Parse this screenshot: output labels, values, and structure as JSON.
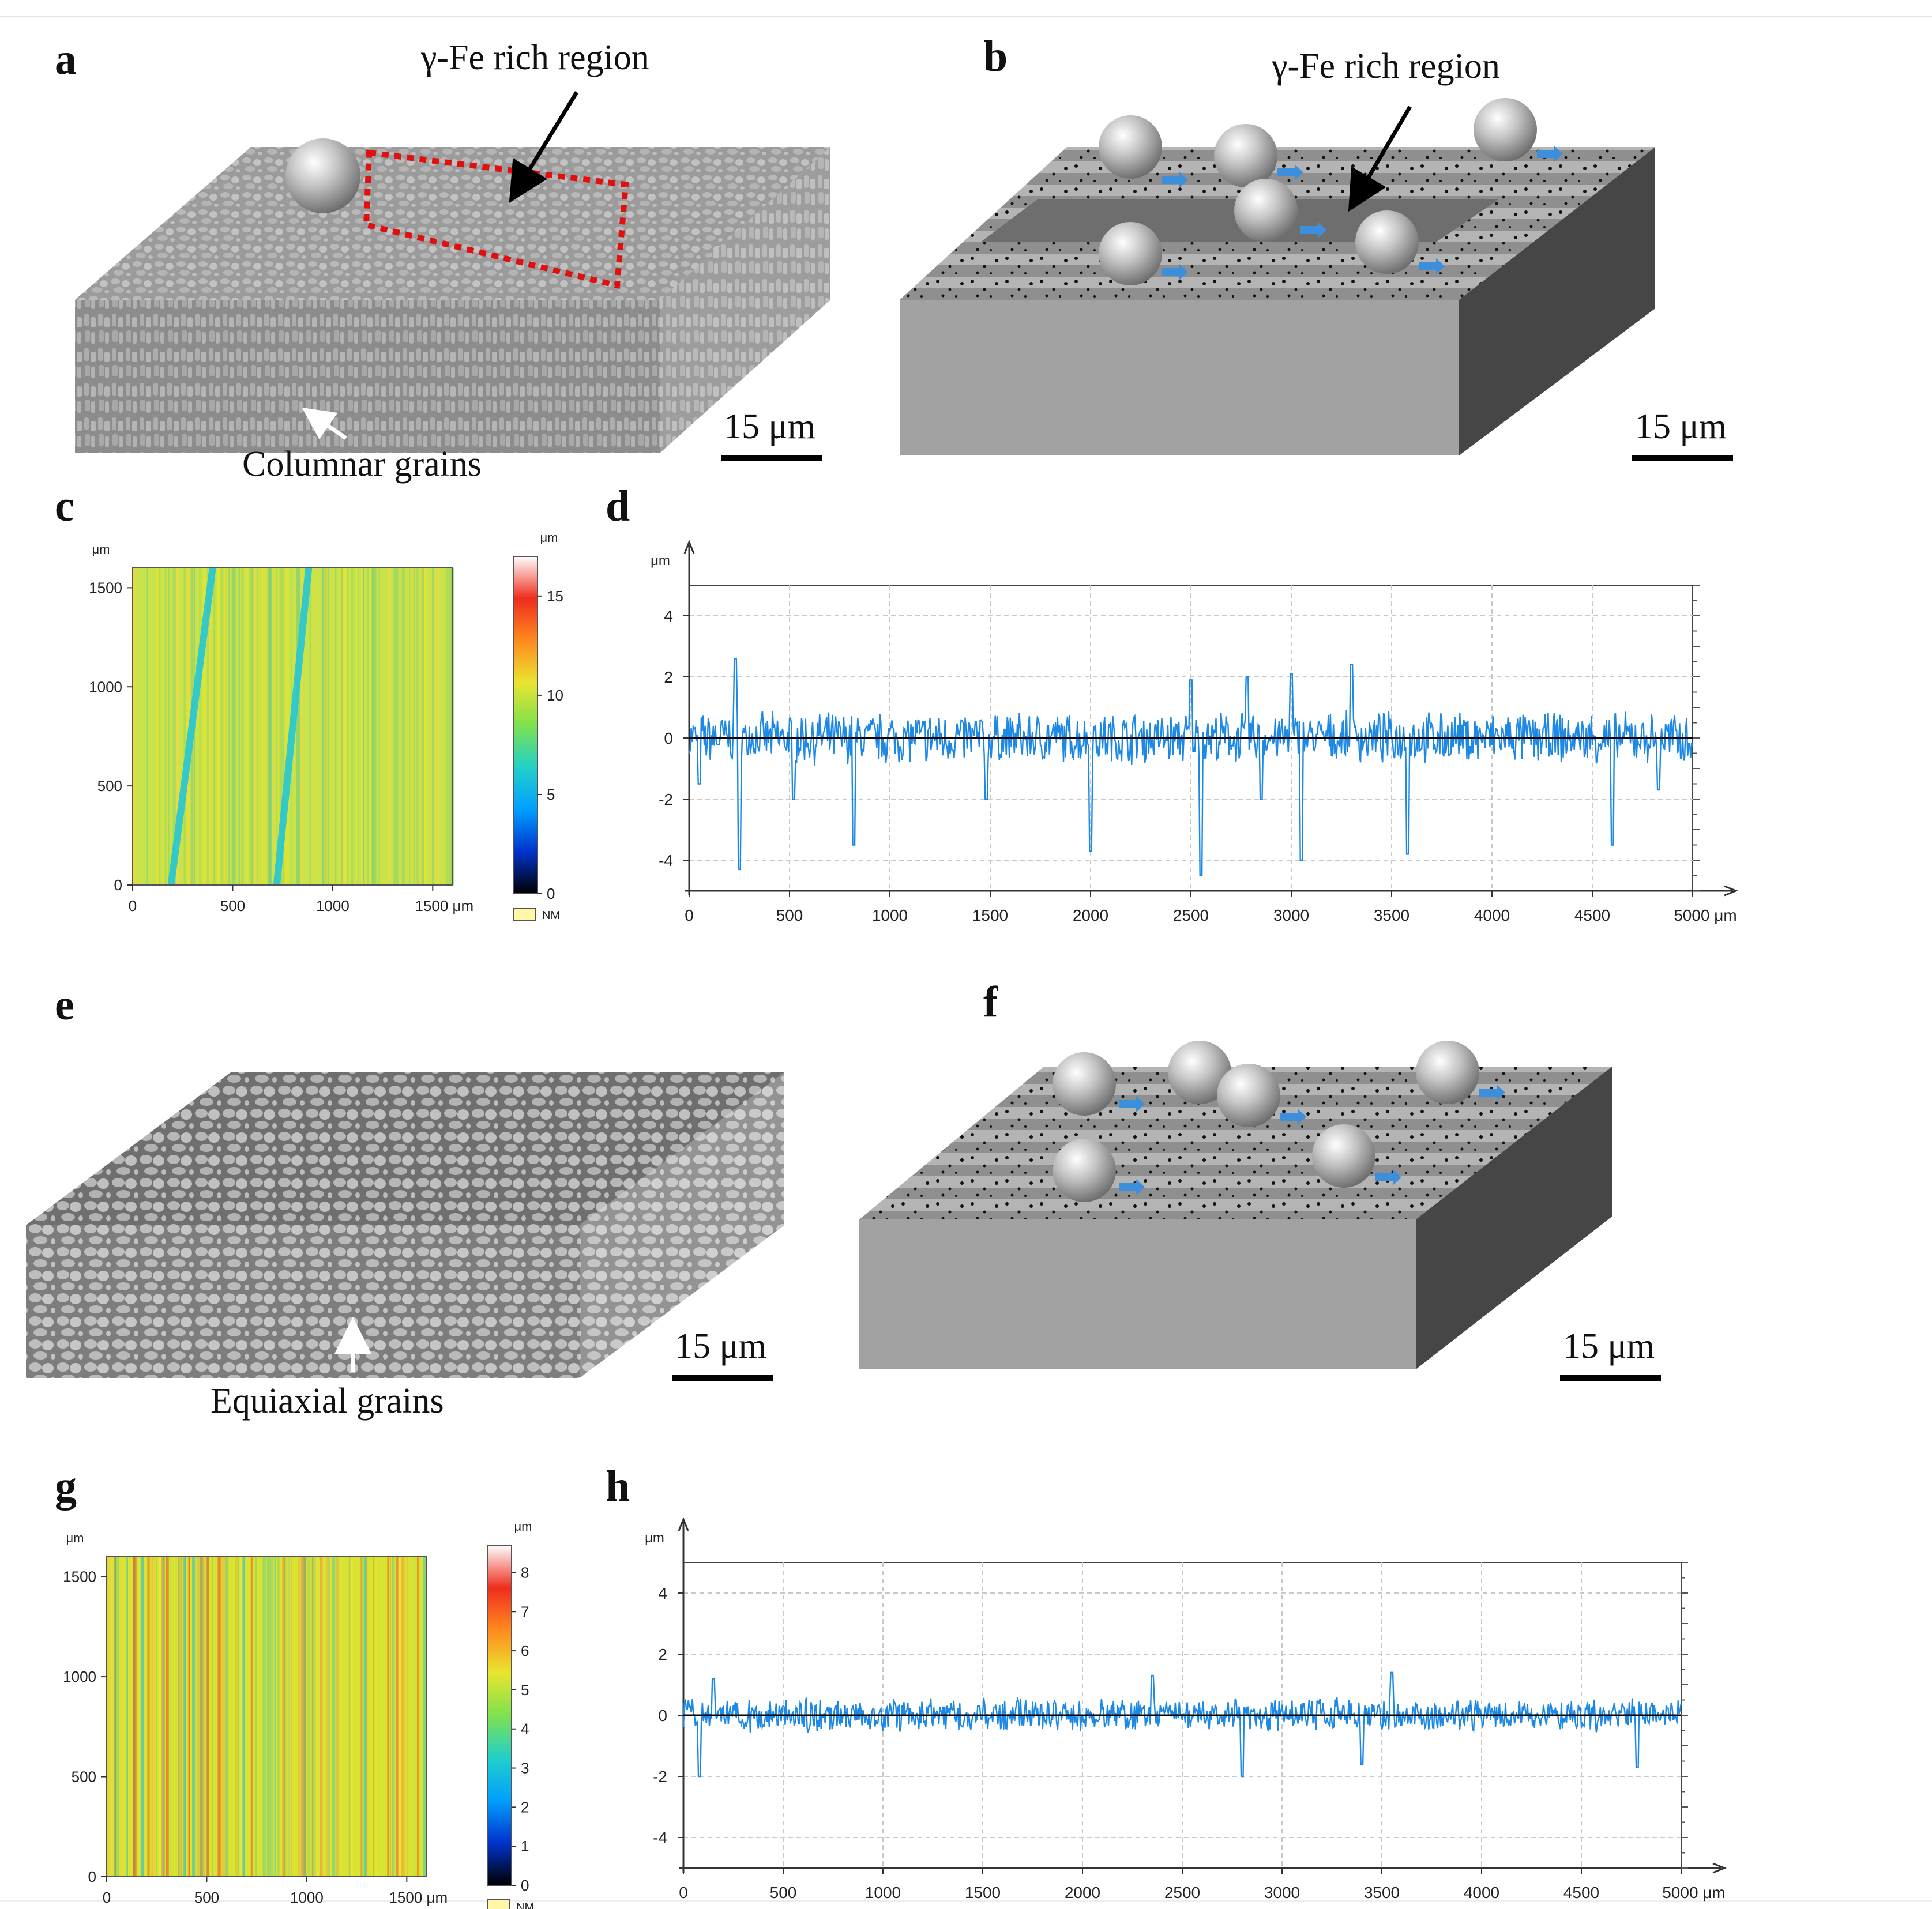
{
  "panels": {
    "a": {
      "letter": "a",
      "region_label": "γ-Fe rich region",
      "grains_label": "Columnar grains",
      "scale": "15 μm"
    },
    "b": {
      "letter": "b",
      "region_label": "γ-Fe rich region",
      "scale": "15 μm"
    },
    "c": {
      "letter": "c",
      "y_unit": "μm",
      "x_unit": "μm",
      "colorbar_unit": "μm",
      "nm_label": "NM"
    },
    "d": {
      "letter": "d",
      "y_unit": "μm",
      "x_unit": "μm"
    },
    "e": {
      "letter": "e",
      "grains_label": "Equiaxial grains",
      "scale": "15 μm"
    },
    "f": {
      "letter": "f",
      "scale": "15 μm"
    },
    "g": {
      "letter": "g",
      "y_unit": "μm",
      "x_unit": "μm",
      "colorbar_unit": "μm",
      "nm_label": "NM"
    },
    "h": {
      "letter": "h",
      "y_unit": "μm",
      "x_unit": "μm"
    }
  },
  "colors": {
    "profile_line": "#1e88e5",
    "grid": "#c8c8c8",
    "zero_line": "#000000"
  },
  "chart_data": [
    {
      "id": "c",
      "type": "heatmap",
      "title": "",
      "xlabel": "μm",
      "ylabel": "μm",
      "x_ticks": [
        "0",
        "500",
        "1000",
        "1500 μm"
      ],
      "y_ticks": [
        "0",
        "500",
        "1000",
        "1500"
      ],
      "xlim": [
        0,
        1600
      ],
      "ylim": [
        0,
        1600
      ],
      "colorbar": {
        "label": "μm",
        "ticks": [
          "0",
          "5",
          "10",
          "15"
        ],
        "range": [
          0,
          17
        ],
        "nm_label": "NM"
      },
      "features": "yellow-green field with two diagonal cyan scratches"
    },
    {
      "id": "d",
      "type": "line",
      "title": "",
      "xlabel": "μm",
      "ylabel": "μm",
      "x_ticks": [
        "0",
        "500",
        "1000",
        "1500",
        "2000",
        "2500",
        "3000",
        "3500",
        "4000",
        "4500",
        "5000 μm"
      ],
      "y_ticks": [
        "4",
        "2",
        "0",
        "-2",
        "-4"
      ],
      "xlim": [
        0,
        5000
      ],
      "ylim": [
        -5,
        5
      ],
      "series": [
        {
          "name": "profile",
          "amplitude": 0.7,
          "seed": 7,
          "spikes": [
            [
              50,
              -1.5
            ],
            [
              250,
              -4.3
            ],
            [
              520,
              -2.0
            ],
            [
              820,
              -3.5
            ],
            [
              1480,
              -2.0
            ],
            [
              2000,
              -3.7
            ],
            [
              2550,
              -4.5
            ],
            [
              2850,
              -2.0
            ],
            [
              3050,
              -4.0
            ],
            [
              3300,
              2.4
            ],
            [
              3580,
              -3.8
            ],
            [
              4600,
              -3.5
            ],
            [
              4830,
              -1.7
            ],
            [
              230,
              2.6
            ],
            [
              2500,
              1.9
            ],
            [
              2780,
              2.0
            ],
            [
              3000,
              2.1
            ]
          ]
        }
      ]
    },
    {
      "id": "g",
      "type": "heatmap",
      "title": "",
      "xlabel": "μm",
      "ylabel": "μm",
      "x_ticks": [
        "0",
        "500",
        "1000",
        "1500 μm"
      ],
      "y_ticks": [
        "0",
        "500",
        "1000",
        "1500"
      ],
      "xlim": [
        0,
        1600
      ],
      "ylim": [
        0,
        1600
      ],
      "colorbar": {
        "label": "μm",
        "ticks": [
          "0",
          "1",
          "2",
          "3",
          "4",
          "5",
          "6",
          "7",
          "8"
        ],
        "range": [
          0,
          8.7
        ],
        "nm_label": "NM"
      },
      "features": "yellow field with fine vertical red and cyan streaks"
    },
    {
      "id": "h",
      "type": "line",
      "title": "",
      "xlabel": "μm",
      "ylabel": "μm",
      "x_ticks": [
        "0",
        "500",
        "1000",
        "1500",
        "2000",
        "2500",
        "3000",
        "3500",
        "4000",
        "4500",
        "5000 μm"
      ],
      "y_ticks": [
        "4",
        "2",
        "0",
        "-2",
        "-4"
      ],
      "xlim": [
        0,
        5000
      ],
      "ylim": [
        -5,
        5
      ],
      "series": [
        {
          "name": "profile",
          "amplitude": 0.45,
          "seed": 13,
          "spikes": [
            [
              80,
              -2.0
            ],
            [
              2800,
              -2.0
            ],
            [
              3400,
              -1.6
            ],
            [
              4780,
              -1.7
            ],
            [
              150,
              1.2
            ],
            [
              2350,
              1.3
            ],
            [
              3550,
              1.4
            ]
          ]
        }
      ]
    }
  ]
}
